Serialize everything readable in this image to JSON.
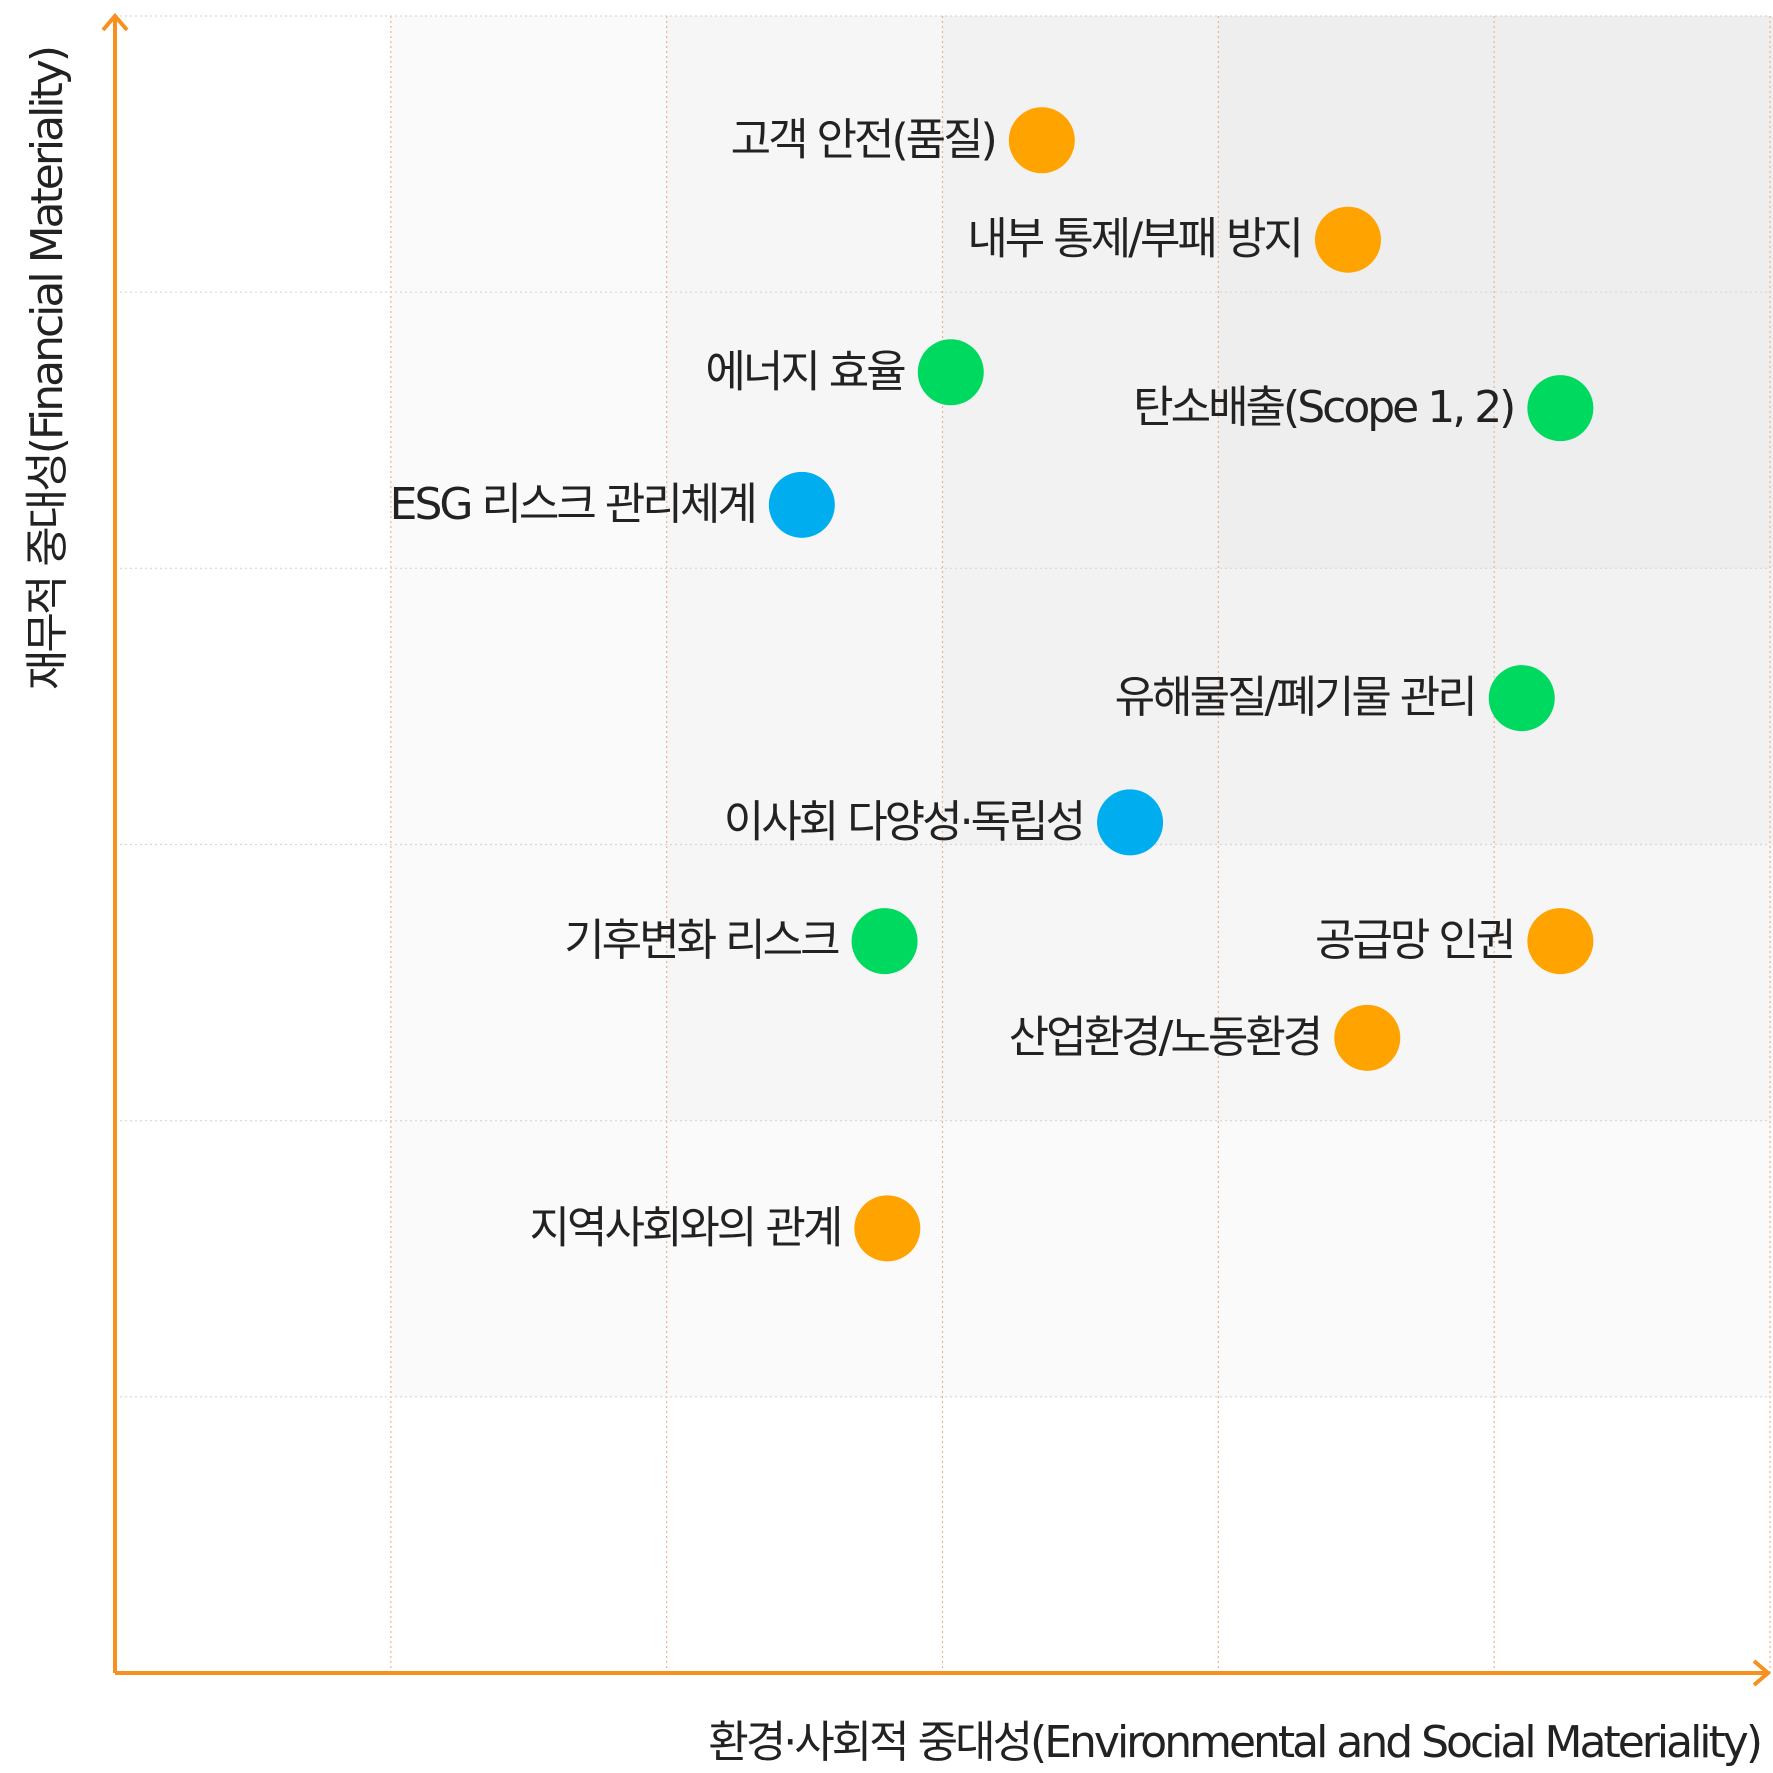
{
  "chart_data": {
    "type": "scatter",
    "xlabel": "환경·사회적 중대성(Environmental and Social Materiality)",
    "ylabel": "재무적 중대성(Financial Materiality)",
    "xlim": [
      0,
      6
    ],
    "ylim": [
      0,
      6
    ],
    "xticks": [
      0,
      1,
      2,
      3,
      4,
      5,
      6
    ],
    "yticks": [
      0,
      1,
      2,
      3,
      4,
      5,
      6
    ],
    "grid": true,
    "labels": [
      "고객 안전(품질)",
      "내부 통제/부패 방지",
      "에너지 효율",
      "탄소배출(Scope 1, 2)",
      "ESG 리스크 관리체계",
      "유해물질/폐기물 관리",
      "이사회 다양성·독립성",
      "기후변화 리스크",
      "공급망 인권",
      "산업환경/노동환경",
      "지역사회와의 관계"
    ],
    "x": [
      3.36,
      4.47,
      3.03,
      5.24,
      2.49,
      5.1,
      3.68,
      2.79,
      5.24,
      4.54,
      2.8
    ],
    "y": [
      5.55,
      5.19,
      4.71,
      4.58,
      4.23,
      3.53,
      3.08,
      2.65,
      2.65,
      2.3,
      1.61
    ],
    "colors": [
      "#ffa300",
      "#ffa300",
      "#00d95f",
      "#00d95f",
      "#00aeef",
      "#00d95f",
      "#00aeef",
      "#00d95f",
      "#ffa300",
      "#ffa300",
      "#ffa300"
    ]
  }
}
